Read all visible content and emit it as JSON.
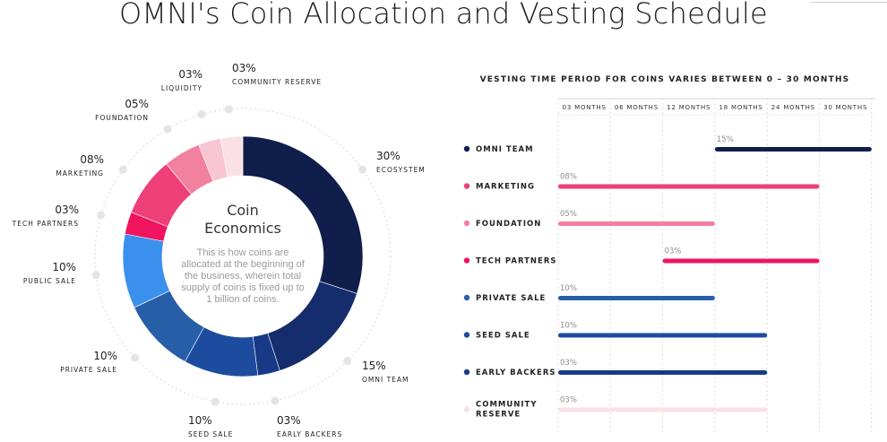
{
  "page": {
    "title": "OMNI's Coin Allocation and Vesting Schedule"
  },
  "chart_data": [
    {
      "type": "pie",
      "variant": "donut",
      "center_title_lines": [
        "Coin",
        "Economics"
      ],
      "center_description_lines": [
        "This is how coins are",
        "allocated at the beginning of",
        "the business, wherein total",
        "supply of coins is fixed up to",
        "1 billion of coins."
      ],
      "slices": [
        {
          "label": "ECOSYSTEM",
          "pct_label": "30%",
          "value": 30,
          "color": "#0f1e4b"
        },
        {
          "label": "OMNI TEAM",
          "pct_label": "15%",
          "value": 15,
          "color": "#152c6d"
        },
        {
          "label": "EARLY BACKERS",
          "pct_label": "03%",
          "value": 3,
          "color": "#183a86"
        },
        {
          "label": "SEED SALE",
          "pct_label": "10%",
          "value": 10,
          "color": "#1d4c9e"
        },
        {
          "label": "PRIVATE SALE",
          "pct_label": "10%",
          "value": 10,
          "color": "#275ea8"
        },
        {
          "label": "PUBLIC SALE",
          "pct_label": "10%",
          "value": 10,
          "color": "#3b90ee"
        },
        {
          "label": "TECH PARTNERS",
          "pct_label": "03%",
          "value": 3,
          "color": "#f0135e"
        },
        {
          "label": "MARKETING",
          "pct_label": "08%",
          "value": 8,
          "color": "#ee3f78"
        },
        {
          "label": "FOUNDATION",
          "pct_label": "05%",
          "value": 5,
          "color": "#f2809f"
        },
        {
          "label": "LIQUIDITY",
          "pct_label": "03%",
          "value": 3,
          "color": "#f7c6d2"
        },
        {
          "label": "COMMUNITY RESERVE",
          "pct_label": "03%",
          "value": 3,
          "color": "#fbe0e5"
        }
      ]
    },
    {
      "type": "bar",
      "orientation": "horizontal-range",
      "title": "VESTING TIME PERIOD FOR COINS VARIES BETWEEN 0 – 30 MONTHS",
      "x_columns": [
        "03 MONTHS",
        "06 MONTHS",
        "12 MONTHS",
        "18 MONTHS",
        "24 MONTHS",
        "30 MONTHS"
      ],
      "rows": [
        {
          "label_lines": [
            "OMNI TEAM"
          ],
          "pct_label": "15%",
          "start_col": 3,
          "end_col": 6,
          "color": "#0f1e4b"
        },
        {
          "label_lines": [
            "MARKETING"
          ],
          "pct_label": "08%",
          "start_col": 0,
          "end_col": 5,
          "color": "#ee3f78"
        },
        {
          "label_lines": [
            "FOUNDATION"
          ],
          "pct_label": "05%",
          "start_col": 0,
          "end_col": 3,
          "color": "#f2809f"
        },
        {
          "label_lines": [
            "TECH PARTNERS"
          ],
          "pct_label": "03%",
          "start_col": 2,
          "end_col": 5,
          "color": "#f0135e"
        },
        {
          "label_lines": [
            "PRIVATE SALE"
          ],
          "pct_label": "10%",
          "start_col": 0,
          "end_col": 3,
          "color": "#275ea8"
        },
        {
          "label_lines": [
            "SEED SALE"
          ],
          "pct_label": "10%",
          "start_col": 0,
          "end_col": 4,
          "color": "#1d4c9e"
        },
        {
          "label_lines": [
            "EARLY BACKERS"
          ],
          "pct_label": "03%",
          "start_col": 0,
          "end_col": 4,
          "color": "#183a86"
        },
        {
          "label_lines": [
            "COMMUNITY",
            "RESERVE"
          ],
          "pct_label": "03%",
          "start_col": 0,
          "end_col": 4,
          "color": "#fbe0e5"
        }
      ]
    }
  ]
}
